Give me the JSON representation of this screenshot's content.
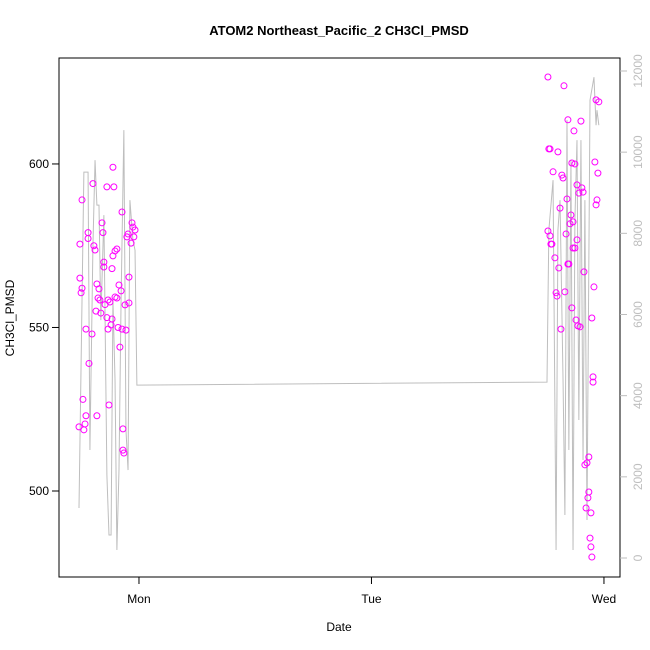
{
  "chart_data": {
    "type": "scatter",
    "title": "ATOM2 Northeast_Pacific_2 CH3Cl_PMSD",
    "xlabel": "Date",
    "ylabel": "CH3Cl_PMSD",
    "xlim": [
      0.656,
      3.069
    ],
    "xticks": [
      {
        "value": 1,
        "label": "Mon"
      },
      {
        "value": 2,
        "label": "Tue"
      },
      {
        "value": 3,
        "label": "Wed"
      }
    ],
    "ylim": [
      473.7,
      632.4
    ],
    "yticks": [
      500,
      550,
      600
    ],
    "y2lim": [
      -468,
      12320
    ],
    "y2ticks": [
      0,
      2000,
      4000,
      6000,
      8000,
      10000,
      12000
    ],
    "series": [
      {
        "type": "scatter",
        "color": "#ff00ff",
        "x": [
          0.742,
          0.746,
          0.746,
          0.751,
          0.755,
          0.755,
          0.759,
          0.763,
          0.768,
          0.772,
          0.772,
          0.781,
          0.781,
          0.785,
          0.798,
          0.802,
          0.806,
          0.811,
          0.815,
          0.819,
          0.819,
          0.824,
          0.828,
          0.832,
          0.836,
          0.841,
          0.845,
          0.849,
          0.849,
          0.854,
          0.862,
          0.862,
          0.867,
          0.867,
          0.871,
          0.875,
          0.88,
          0.884,
          0.884,
          0.888,
          0.888,
          0.892,
          0.897,
          0.897,
          0.905,
          0.905,
          0.91,
          0.914,
          0.918,
          0.923,
          0.927,
          0.927,
          0.931,
          0.931,
          0.935,
          0.94,
          0.944,
          0.948,
          0.953,
          0.957,
          0.957,
          0.966,
          0.97,
          0.974,
          0.978,
          0.983,
          2.759,
          2.759,
          2.763,
          2.768,
          2.768,
          2.772,
          2.776,
          2.781,
          2.789,
          2.794,
          2.798,
          2.802,
          2.806,
          2.811,
          2.815,
          2.819,
          2.824,
          2.828,
          2.832,
          2.837,
          2.841,
          2.845,
          2.845,
          2.849,
          2.854,
          2.858,
          2.862,
          2.862,
          2.867,
          2.867,
          2.871,
          2.875,
          2.875,
          2.88,
          2.884,
          2.884,
          2.888,
          2.892,
          2.897,
          2.901,
          2.905,
          2.91,
          2.914,
          2.918,
          2.923,
          2.927,
          2.931,
          2.935,
          2.935,
          2.94,
          2.944,
          2.944,
          2.948,
          2.948,
          2.953,
          2.953,
          2.957,
          2.961,
          2.966,
          2.966,
          2.97,
          2.974,
          2.978
        ],
        "values": [
          519.6,
          575.5,
          565.1,
          560.6,
          589,
          562,
          528,
          518.7,
          520.5,
          523,
          549.5,
          577.2,
          579,
          539,
          548,
          594,
          575,
          573.7,
          555,
          563.3,
          523,
          559,
          561.8,
          558.4,
          554.4,
          582,
          579,
          570,
          568.5,
          557,
          553,
          593,
          558.4,
          549.5,
          526.3,
          557.8,
          550.8,
          552.6,
          568,
          571.9,
          599,
          593,
          559.3,
          573.4,
          574,
          559,
          550,
          563,
          544,
          561.2,
          585.3,
          549.5,
          519,
          512.5,
          511.6,
          556.9,
          549.2,
          577.7,
          578.6,
          557.5,
          565.4,
          575.8,
          582,
          580.7,
          577.7,
          579.8,
          626.6,
          579.5,
          604.6,
          604.6,
          578,
          575.5,
          575.5,
          597.6,
          571.3,
          560.6,
          559.6,
          603.7,
          568.2,
          586.5,
          549.5,
          596.6,
          595.7,
          623.9,
          560.9,
          578.6,
          589.3,
          569.4,
          613.5,
          569.4,
          581.7,
          584.4,
          600.3,
          556,
          582.3,
          574.3,
          610.1,
          600,
          574.3,
          552.3,
          593.6,
          576.8,
          550.5,
          591.1,
          550.2,
          613.1,
          592.7,
          591.4,
          567,
          508,
          494.8,
          508.6,
          497.9,
          499.7,
          510.4,
          485.6,
          493.3,
          482.9,
          479.8,
          552.9,
          534.9,
          533.3,
          562.4,
          600.6,
          619.6,
          587.5,
          589,
          597.2,
          619
        ]
      },
      {
        "type": "line",
        "axis": "y2",
        "color": "#bebebe",
        "x": [
          0.742,
          0.763,
          0.781,
          0.789,
          0.802,
          0.811,
          0.819,
          0.828,
          0.836,
          0.849,
          0.862,
          0.871,
          0.88,
          0.888,
          0.897,
          0.905,
          0.914,
          0.923,
          0.935,
          0.944,
          0.953,
          0.961,
          0.974,
          0.983,
          0.991,
          2.755,
          2.763,
          2.781,
          2.794,
          2.802,
          2.811,
          2.824,
          2.832,
          2.841,
          2.849,
          2.858,
          2.867,
          2.875,
          2.884,
          2.892,
          2.901,
          2.91,
          2.918,
          2.927,
          2.94,
          2.957,
          2.966,
          2.97,
          2.978
        ],
        "values": [
          1231,
          9507,
          9507,
          2660,
          7709,
          9803,
          8695,
          8695,
          5862,
          8448,
          2044,
          567,
          567,
          6355,
          4384,
          197,
          2167,
          6355,
          10542,
          3153,
          2167,
          8817,
          7833,
          7586,
          4261,
          4335,
          8079,
          9310,
          197,
          8079,
          8817,
          4384,
          1059,
          10788,
          2660,
          9803,
          197,
          8325,
          10296,
          3399,
          10296,
          2414,
          8817,
          936,
          11281,
          11847,
          10665,
          11035,
          10665
        ]
      }
    ]
  }
}
